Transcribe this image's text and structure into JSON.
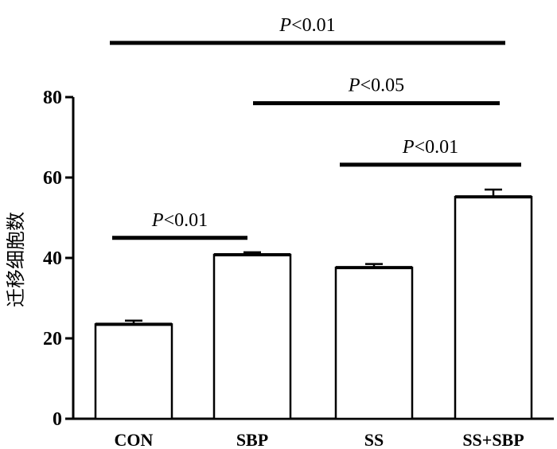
{
  "chart_data": {
    "type": "bar",
    "title": "",
    "xlabel": "",
    "ylabel": "迁移细胞数",
    "categories": [
      "CON",
      "SBP",
      "SS",
      "SS+SBP"
    ],
    "values": [
      23.5,
      40.8,
      37.6,
      55.2
    ],
    "errors": [
      0.9,
      0.6,
      0.9,
      1.8
    ],
    "ylim": [
      0,
      80
    ],
    "yticks": [
      0,
      20,
      40,
      60,
      80
    ],
    "ytick_labels": [
      "0",
      "20",
      "40",
      "60",
      "80"
    ],
    "grid": false,
    "legend": "none",
    "bar_fill": "#ffffff",
    "bar_edge": "#000000",
    "significance": [
      {
        "from": "CON",
        "to": "SS+SBP",
        "level": 93.5,
        "label_prefix": "P",
        "label_rest": "<0.01"
      },
      {
        "from": "SBP",
        "to": "SS+SBP",
        "level": 78.5,
        "label_prefix": "P",
        "label_rest": "<0.05"
      },
      {
        "from": "SS",
        "to": "SS+SBP",
        "level": 63.2,
        "label_prefix": "P",
        "label_rest": "<0.01"
      },
      {
        "from": "CON",
        "to": "SBP",
        "level": 45.0,
        "label_prefix": "P",
        "label_rest": "<0.01"
      }
    ]
  }
}
